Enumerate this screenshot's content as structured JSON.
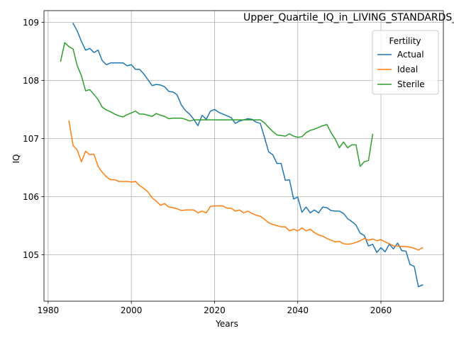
{
  "chart_data": {
    "type": "line",
    "title": "Upper_Quartile_IQ_in_LIVING_STANDARDS_WILL_IMPROVE_Sample for Wh",
    "xlabel": "Years",
    "ylabel": "IQ",
    "xlim": [
      1979,
      2075
    ],
    "ylim": [
      104.2,
      109.2
    ],
    "x_ticks": [
      1980,
      2000,
      2020,
      2040,
      2060
    ],
    "x_tick_labels": [
      "1980",
      "2000",
      "2020",
      "2040",
      "2060"
    ],
    "y_ticks": [
      105,
      106,
      107,
      108,
      109
    ],
    "y_tick_labels": [
      "105",
      "106",
      "107",
      "108",
      "109"
    ],
    "grid": true,
    "legend": {
      "title": "Fertility",
      "placement": "top-right"
    },
    "series": [
      {
        "name": "Actual",
        "color": "#1f77b4",
        "x": [
          1986,
          1987,
          1988,
          1989,
          1990,
          1991,
          1992,
          1993,
          1994,
          1995,
          1996,
          1997,
          1998,
          1999,
          2000,
          2001,
          2002,
          2003,
          2004,
          2005,
          2006,
          2007,
          2008,
          2009,
          2010,
          2011,
          2012,
          2013,
          2014,
          2015,
          2016,
          2017,
          2018,
          2019,
          2020,
          2021,
          2022,
          2023,
          2024,
          2025,
          2026,
          2027,
          2028,
          2029,
          2030,
          2031,
          2032,
          2033,
          2034,
          2035,
          2036,
          2037,
          2038,
          2039,
          2040,
          2041,
          2042,
          2043,
          2044,
          2045,
          2046,
          2047,
          2048,
          2049,
          2050,
          2051,
          2052,
          2053,
          2054,
          2055,
          2056,
          2057,
          2058,
          2059,
          2060,
          2061,
          2062,
          2063,
          2064,
          2065,
          2066,
          2067,
          2068,
          2069,
          2070
        ],
        "values": [
          108.98,
          108.85,
          108.67,
          108.52,
          108.55,
          108.48,
          108.52,
          108.34,
          108.27,
          108.3,
          108.3,
          108.3,
          108.3,
          108.25,
          108.27,
          108.19,
          108.19,
          108.11,
          108.01,
          107.91,
          107.93,
          107.92,
          107.89,
          107.81,
          107.8,
          107.75,
          107.58,
          107.48,
          107.42,
          107.33,
          107.22,
          107.4,
          107.33,
          107.47,
          107.5,
          107.45,
          107.42,
          107.39,
          107.36,
          107.26,
          107.3,
          107.32,
          107.34,
          107.33,
          107.28,
          107.26,
          107.02,
          106.77,
          106.72,
          106.57,
          106.57,
          106.28,
          106.29,
          105.96,
          105.99,
          105.73,
          105.82,
          105.72,
          105.77,
          105.72,
          105.82,
          105.81,
          105.76,
          105.75,
          105.75,
          105.71,
          105.62,
          105.57,
          105.51,
          105.37,
          105.33,
          105.15,
          105.18,
          105.04,
          105.12,
          105.05,
          105.18,
          105.1,
          105.2,
          105.07,
          105.06,
          104.83,
          104.8,
          104.45,
          104.48
        ]
      },
      {
        "name": "Ideal",
        "color": "#ff7f0e",
        "x": [
          1985,
          1986,
          1987,
          1988,
          1989,
          1990,
          1991,
          1992,
          1993,
          1994,
          1995,
          1996,
          1997,
          1998,
          1999,
          2000,
          2001,
          2002,
          2003,
          2004,
          2005,
          2006,
          2007,
          2008,
          2009,
          2010,
          2011,
          2012,
          2013,
          2014,
          2015,
          2016,
          2017,
          2018,
          2019,
          2020,
          2021,
          2022,
          2023,
          2024,
          2025,
          2026,
          2027,
          2028,
          2029,
          2030,
          2031,
          2032,
          2033,
          2034,
          2035,
          2036,
          2037,
          2038,
          2039,
          2040,
          2041,
          2042,
          2043,
          2044,
          2045,
          2046,
          2047,
          2048,
          2049,
          2050,
          2051,
          2052,
          2053,
          2054,
          2055,
          2056,
          2057,
          2058,
          2059,
          2060,
          2061,
          2062,
          2063,
          2064,
          2065,
          2066,
          2067,
          2068,
          2069,
          2070
        ],
        "values": [
          107.3,
          106.88,
          106.8,
          106.6,
          106.78,
          106.72,
          106.73,
          106.52,
          106.42,
          106.34,
          106.29,
          106.29,
          106.26,
          106.26,
          106.26,
          106.25,
          106.26,
          106.19,
          106.14,
          106.08,
          105.98,
          105.92,
          105.85,
          105.88,
          105.82,
          105.81,
          105.79,
          105.76,
          105.77,
          105.77,
          105.77,
          105.72,
          105.75,
          105.72,
          105.83,
          105.84,
          105.84,
          105.84,
          105.8,
          105.8,
          105.75,
          105.77,
          105.72,
          105.75,
          105.71,
          105.68,
          105.66,
          105.61,
          105.55,
          105.52,
          105.5,
          105.48,
          105.48,
          105.41,
          105.44,
          105.41,
          105.46,
          105.41,
          105.44,
          105.38,
          105.34,
          105.32,
          105.28,
          105.25,
          105.22,
          105.23,
          105.19,
          105.18,
          105.19,
          105.21,
          105.24,
          105.28,
          105.25,
          105.27,
          105.24,
          105.26,
          105.22,
          105.19,
          105.15,
          105.15,
          105.14,
          105.14,
          105.13,
          105.11,
          105.08,
          105.12
        ]
      },
      {
        "name": "Sterile",
        "color": "#2ca02c",
        "x": [
          1983,
          1984,
          1985,
          1986,
          1987,
          1988,
          1989,
          1990,
          1991,
          1992,
          1993,
          1994,
          1995,
          1996,
          1997,
          1998,
          1999,
          2000,
          2001,
          2002,
          2003,
          2004,
          2005,
          2006,
          2007,
          2008,
          2009,
          2010,
          2011,
          2012,
          2013,
          2014,
          2015,
          2016,
          2017,
          2018,
          2019,
          2020,
          2021,
          2022,
          2023,
          2024,
          2025,
          2026,
          2027,
          2028,
          2029,
          2030,
          2031,
          2032,
          2033,
          2034,
          2035,
          2036,
          2037,
          2038,
          2039,
          2040,
          2041,
          2042,
          2043,
          2044,
          2045,
          2046,
          2047,
          2048,
          2049,
          2050,
          2051,
          2052,
          2053,
          2054,
          2055,
          2056,
          2057,
          2058
        ],
        "values": [
          108.33,
          108.65,
          108.58,
          108.54,
          108.25,
          108.08,
          107.82,
          107.84,
          107.76,
          107.67,
          107.54,
          107.49,
          107.46,
          107.42,
          107.39,
          107.37,
          107.41,
          107.44,
          107.47,
          107.42,
          107.42,
          107.4,
          107.38,
          107.43,
          107.4,
          107.38,
          107.34,
          107.35,
          107.35,
          107.35,
          107.33,
          107.3,
          107.32,
          107.32,
          107.32,
          107.32,
          107.32,
          107.32,
          107.32,
          107.32,
          107.32,
          107.32,
          107.32,
          107.32,
          107.32,
          107.32,
          107.32,
          107.32,
          107.32,
          107.27,
          107.19,
          107.12,
          107.06,
          107.05,
          107.04,
          107.08,
          107.04,
          107.02,
          107.03,
          107.1,
          107.14,
          107.16,
          107.19,
          107.22,
          107.24,
          107.1,
          106.99,
          106.84,
          106.94,
          106.84,
          106.89,
          106.89,
          106.52,
          106.6,
          106.62,
          107.07
        ]
      }
    ]
  }
}
